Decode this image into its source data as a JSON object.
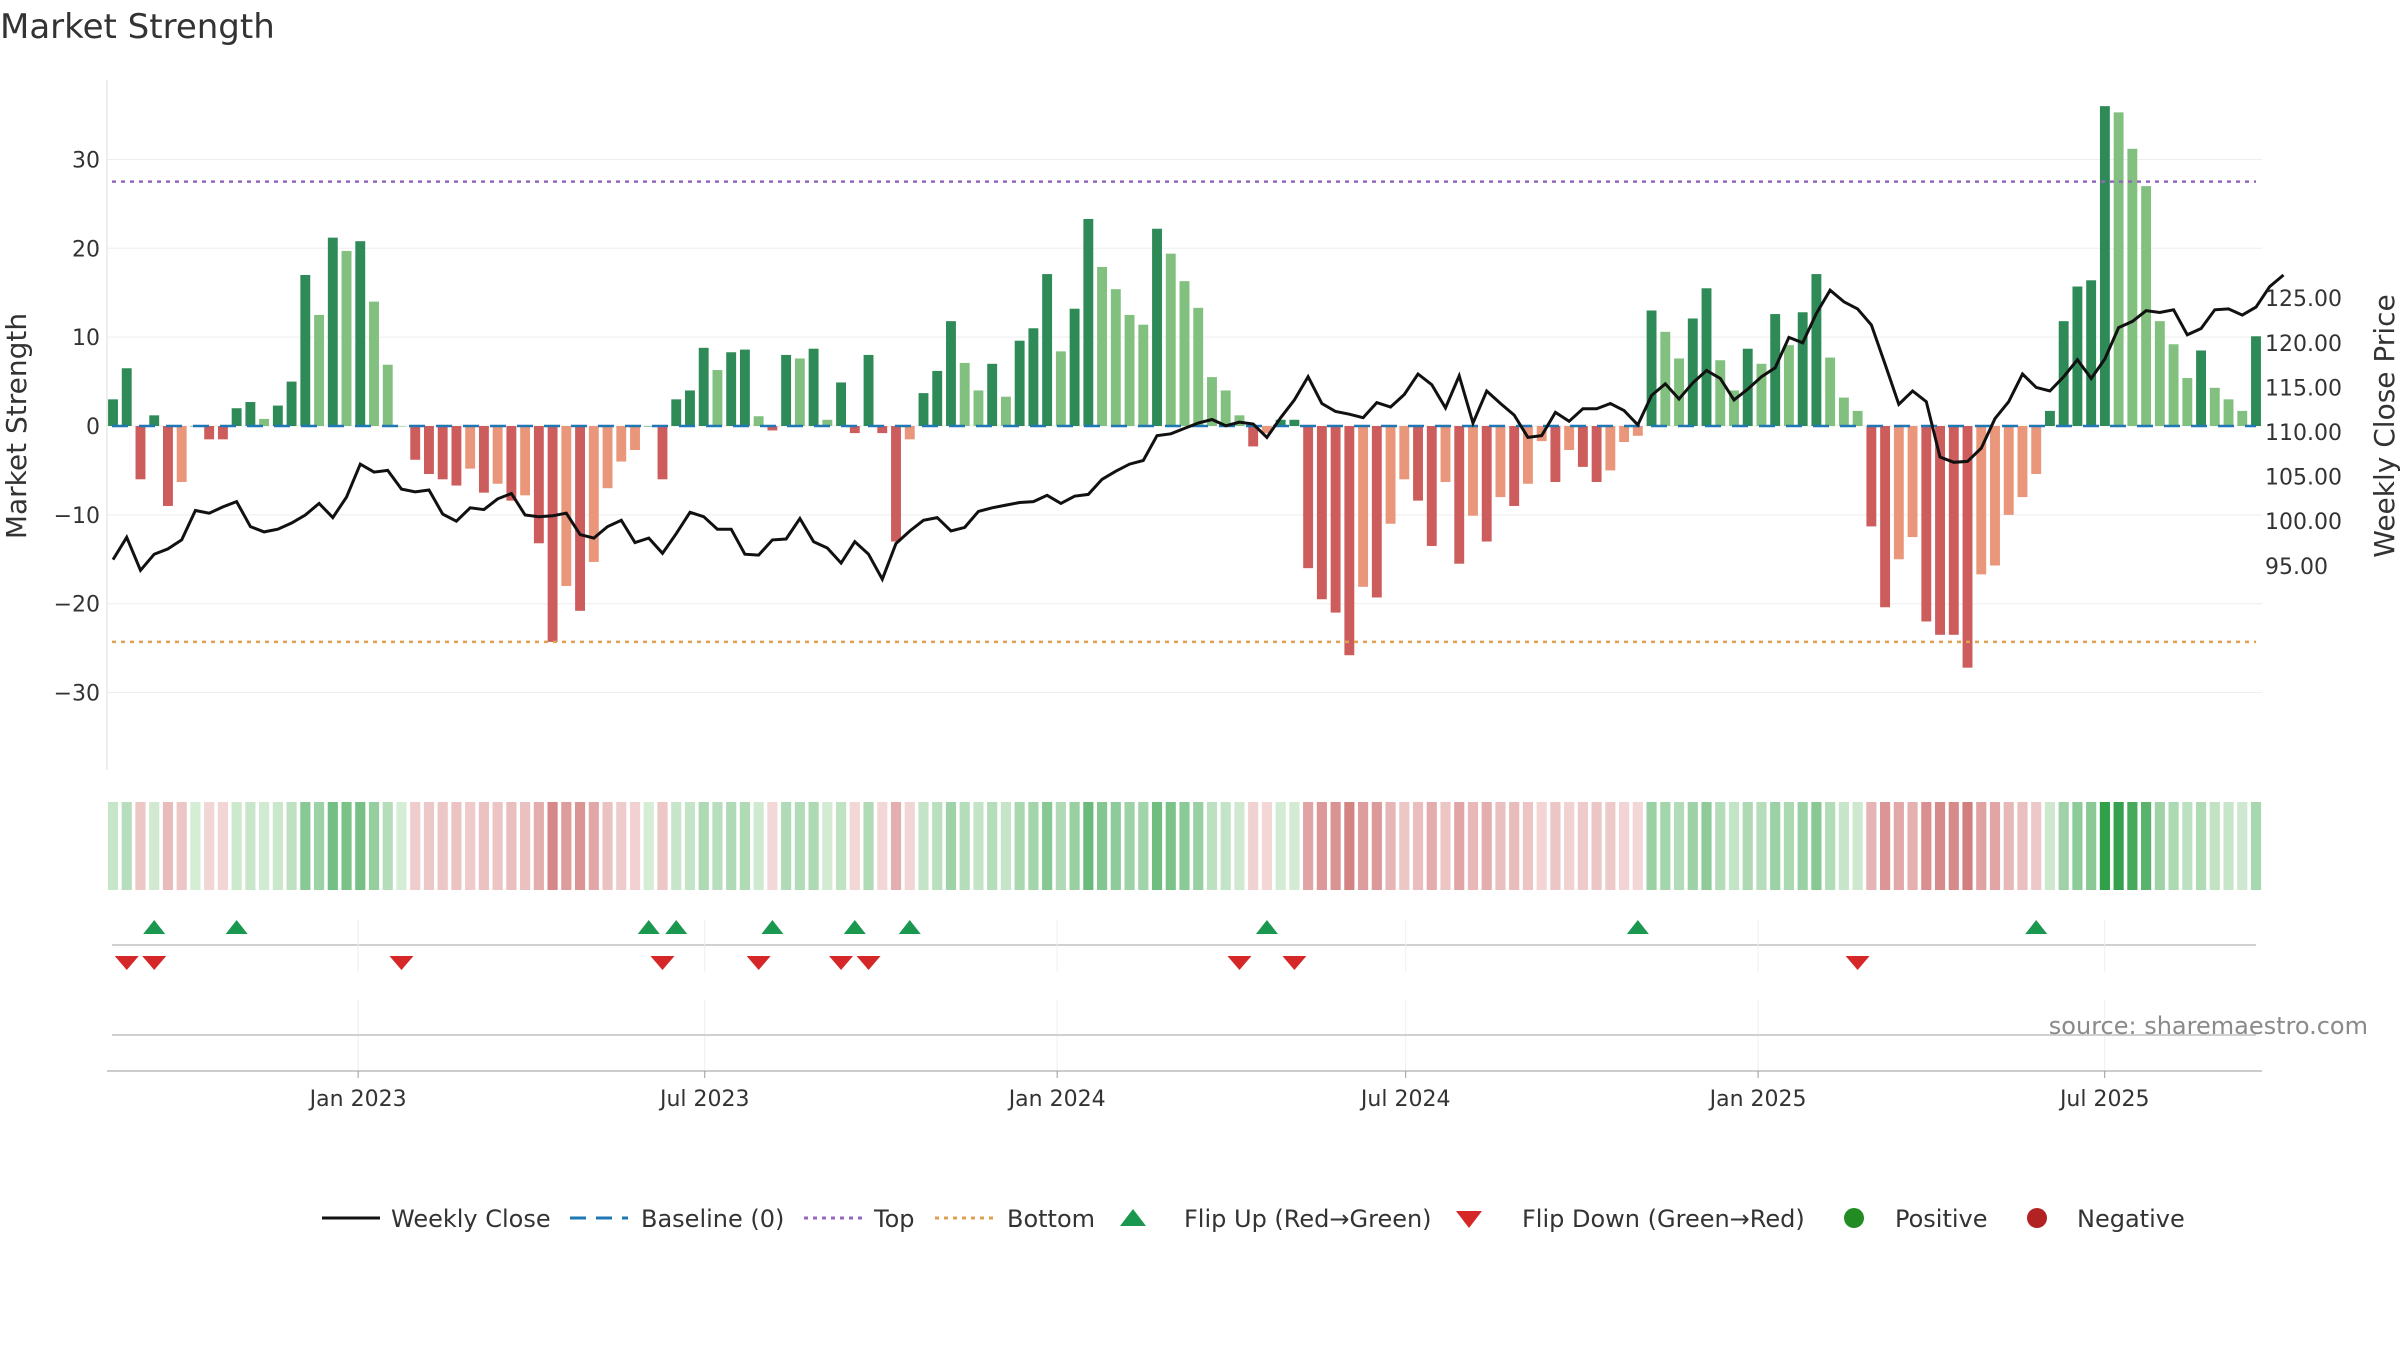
{
  "chart_data": {
    "type": "bar",
    "title": "Market Strength",
    "ylabel": "Market Strength",
    "y2label": "Weekly Close Price",
    "ylim": [
      -39,
      39
    ],
    "y2lim": [
      91.2,
      129.9
    ],
    "yticks": [
      30,
      20,
      10,
      0,
      -10,
      -20,
      -30
    ],
    "ytick_labels": [
      "30",
      "20",
      "10",
      "0",
      "−10",
      "−20",
      "−30"
    ],
    "y2ticks": [
      125,
      120,
      115,
      110,
      105,
      100,
      95
    ],
    "y2tick_labels": [
      "125.00",
      "120.00",
      "115.00",
      "110.00",
      "105.00",
      "100.00",
      "95.00"
    ],
    "x_start": "2022-08-26",
    "x_end": "2025-09-18",
    "x_labels": [
      "Jan 2023",
      "Jul 2023",
      "Jan 2024",
      "Jul 2024",
      "Jan 2025",
      "Jul 2025"
    ],
    "x_label_dates": [
      "2023-01-01",
      "2023-07-01",
      "2024-01-01",
      "2024-07-01",
      "2025-01-01",
      "2025-07-01"
    ],
    "top_line": 27.5,
    "bottom_line": -24.3,
    "baseline": 0,
    "source": "source: sharemaestro.com",
    "legend": [
      "Weekly Close",
      "Baseline (0)",
      "Top",
      "Bottom",
      "Flip Up (Red→Green)",
      "Flip Down (Green→Red)",
      "Positive",
      "Negative"
    ],
    "strength": [
      3,
      6.5,
      -6,
      1.2,
      -9,
      -6.3,
      0,
      -1.5,
      -1.5,
      2,
      2.7,
      0.8,
      2.3,
      5,
      17,
      12.5,
      21.2,
      19.7,
      20.8,
      14,
      6.9,
      0,
      -3.8,
      -5.4,
      -6,
      -6.7,
      -4.8,
      -7.5,
      -6.5,
      -8.4,
      -7.8,
      -13.2,
      -24.3,
      -18,
      -20.8,
      -15.3,
      -7,
      -4,
      -2.7,
      0,
      -6,
      3,
      4,
      8.8,
      6.3,
      8.3,
      8.6,
      1.1,
      -0.5,
      8,
      7.6,
      8.7,
      0.7,
      4.9,
      -0.8,
      8,
      -0.8,
      -13,
      -1.5,
      3.7,
      6.2,
      11.8,
      7.1,
      4,
      7,
      3.3,
      9.6,
      11,
      17.1,
      8.4,
      13.2,
      23.3,
      17.9,
      15.4,
      12.5,
      11.4,
      22.2,
      19.4,
      16.3,
      13.3,
      5.5,
      4,
      1.2,
      -2.3,
      -0.8,
      0.7,
      0.7,
      -16,
      -19.5,
      -21,
      -25.8,
      -18.1,
      -19.3,
      -11,
      -6,
      -8.4,
      -13.5,
      -6.3,
      -15.5,
      -10.1,
      -13,
      -8,
      -9,
      -6.5,
      -1.7,
      -6.3,
      -2.7,
      -4.6,
      -6.3,
      -5,
      -1.8,
      -1.1,
      13,
      10.6,
      7.6,
      12.1,
      15.5,
      7.4,
      4,
      8.7,
      7,
      12.6,
      9.1,
      12.8,
      17.1,
      7.7,
      3.2,
      1.7,
      -11.3,
      -20.4,
      -15,
      -12.5,
      -22,
      -23.5,
      -23.5,
      -27.2,
      -16.7,
      -15.7,
      -10,
      -8,
      -5.4,
      1.7,
      11.8,
      15.7,
      16.4,
      36,
      35.3,
      31.2,
      27,
      11.8,
      9.2,
      5.4,
      8.5,
      4.3,
      3,
      1.7,
      10.1
    ],
    "close": [
      95.7,
      98.2,
      94.5,
      96.3,
      96.9,
      97.9,
      101.2,
      100.9,
      101.6,
      102.2,
      99.4,
      98.8,
      99.1,
      99.8,
      100.7,
      102,
      100.4,
      102.7,
      106.4,
      105.5,
      105.7,
      103.6,
      103.3,
      103.5,
      100.8,
      100,
      101.5,
      101.3,
      102.5,
      103.1,
      100.7,
      100.5,
      100.6,
      100.9,
      98.5,
      98.1,
      99.4,
      100.1,
      97.6,
      98.1,
      96.4,
      98.6,
      101,
      100.5,
      99.1,
      99.1,
      96.3,
      96.2,
      97.9,
      98,
      100.3,
      97.7,
      97,
      95.3,
      97.7,
      96.3,
      93.5,
      97.5,
      98.9,
      100.1,
      100.4,
      98.9,
      99.3,
      101.1,
      101.5,
      101.8,
      102.1,
      102.2,
      102.9,
      102,
      102.8,
      103,
      104.7,
      105.6,
      106.4,
      106.8,
      109.6,
      109.8,
      110.4,
      111,
      111.4,
      110.7,
      111.1,
      110.9,
      109.4,
      111.6,
      113.6,
      116.2,
      113.2,
      112.3,
      112,
      111.6,
      113.3,
      112.8,
      114.2,
      116.5,
      115.3,
      112.7,
      116.3,
      111,
      114.6,
      113.2,
      111.9,
      109.4,
      109.6,
      112.2,
      111.2,
      112.6,
      112.6,
      113.2,
      112.4,
      110.8,
      114.1,
      115.4,
      113.7,
      115.5,
      116.9,
      116,
      113.6,
      114.8,
      116.2,
      117.2,
      120.6,
      120,
      123.3,
      125.9,
      124.6,
      123.8,
      122,
      117.6,
      113.1,
      114.6,
      113.4,
      107.2,
      106.6,
      106.7,
      108.2,
      111.5,
      113.4,
      116.5,
      115,
      114.6,
      116.2,
      118.1,
      116,
      118.2,
      121.7,
      122.4,
      123.6,
      123.4,
      123.7,
      120.9,
      121.6,
      123.7,
      123.8,
      123.1,
      124,
      126.3,
      127.6
    ],
    "flip_up_weeks": [
      3,
      9,
      39,
      41,
      48,
      54,
      58,
      84,
      111,
      140
    ],
    "flip_down_weeks": [
      1,
      3,
      21,
      40,
      47,
      53,
      55,
      82,
      86,
      127
    ],
    "colors": {
      "strong_green": "#2e8b57",
      "light_green": "#81c07e",
      "strong_red": "#cd5c5c",
      "light_red": "#e9967a",
      "close_line": "#111111",
      "baseline": "#1f77b4",
      "top": "#9467bd",
      "bottom": "#e1a050",
      "flip_up": "#1a9850",
      "flip_down": "#d62728",
      "positive": "#228b22",
      "negative": "#b22222"
    }
  }
}
